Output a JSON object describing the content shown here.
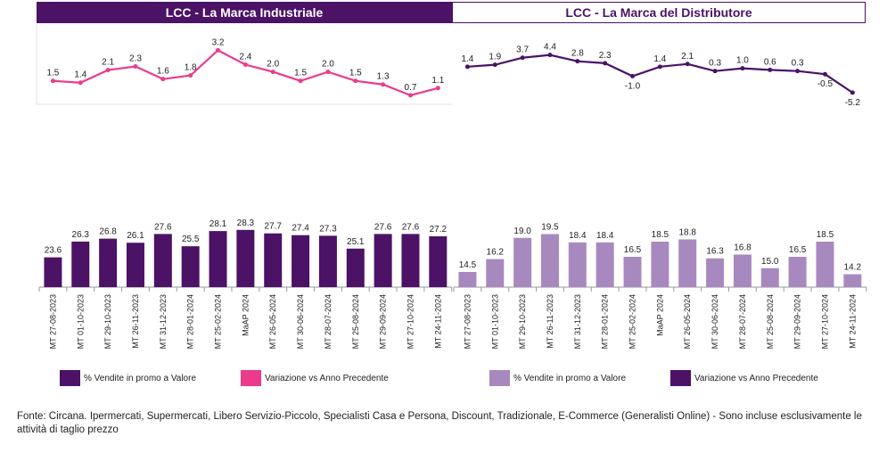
{
  "panels": [
    {
      "title": "LCC - La Marca Industriale",
      "title_bg": "#4b1266",
      "title_color": "#ffffff"
    },
    {
      "title": "LCC - La Marca del Distributore",
      "title_bg": "#ffffff",
      "title_color": "#4b1266"
    }
  ],
  "legend": {
    "left": [
      {
        "label": "% Vendite in promo a Valore",
        "color": "#4b1266"
      },
      {
        "label": "Variazione vs Anno Precedente",
        "color": "#ec3a8c"
      }
    ],
    "right": [
      {
        "label": "% Vendite in promo a Valore",
        "color": "#a889bf"
      },
      {
        "label": "Variazione vs Anno Precedente",
        "color": "#4b1266"
      }
    ]
  },
  "footnote": "Fonte: Circana. Ipermercati, Supermercati, Libero Servizio-Piccolo, Specialisti Casa e Persona, Discount, Tradizionale, E-Commerce (Generalisti Online) - Sono incluse esclusivamente le attività di taglio prezzo",
  "chart_data": [
    {
      "type": "bar",
      "title": "LCC - La Marca Industriale",
      "categories": [
        "MT 27-08-2023",
        "MT 01-10-2023",
        "MT 29-10-2023",
        "MT 26-11-2023",
        "MT 31-12-2023",
        "MT 28-01-2024",
        "MT 25-02-2024",
        "MaAP 2024",
        "MT 26-05-2024",
        "MT 30-06-2024",
        "MT 28-07-2024",
        "MT 25-08-2024",
        "MT 29-09-2024",
        "MT 27-10-2024",
        "MT 24-11-2024"
      ],
      "series": [
        {
          "name": "% Vendite in promo a Valore",
          "type": "bar",
          "color": "#4b1266",
          "values": [
            23.6,
            26.3,
            26.8,
            26.1,
            27.6,
            25.5,
            28.1,
            28.3,
            27.7,
            27.4,
            27.3,
            25.1,
            27.6,
            27.6,
            27.2
          ]
        },
        {
          "name": "Variazione vs Anno Precedente",
          "type": "line",
          "color": "#ec3a8c",
          "values": [
            1.5,
            1.4,
            2.1,
            2.3,
            1.6,
            1.8,
            3.2,
            2.4,
            2.0,
            1.5,
            2.0,
            1.5,
            1.3,
            0.7,
            1.1
          ]
        }
      ]
    },
    {
      "type": "bar",
      "title": "LCC - La Marca del Distributore",
      "categories": [
        "MT 27-08-2023",
        "MT 01-10-2023",
        "MT 29-10-2023",
        "MT 26-11-2023",
        "MT 31-12-2023",
        "MT 28-01-2024",
        "MT 25-02-2024",
        "MaAP 2024",
        "MT 26-05-2024",
        "MT 30-06-2024",
        "MT 28-07-2024",
        "MT 25-08-2024",
        "MT 29-09-2024",
        "MT 27-10-2024",
        "MT 24-11-2024"
      ],
      "series": [
        {
          "name": "% Vendite in promo a Valore",
          "type": "bar",
          "color": "#a889bf",
          "values": [
            14.5,
            16.2,
            19.0,
            19.5,
            18.4,
            18.4,
            16.5,
            18.5,
            18.8,
            16.3,
            16.8,
            15.0,
            16.5,
            18.5,
            14.2
          ]
        },
        {
          "name": "Variazione vs Anno Precedente",
          "type": "line",
          "color": "#4b1266",
          "values": [
            1.4,
            1.9,
            3.7,
            4.4,
            2.8,
            2.3,
            -1.0,
            1.4,
            2.1,
            0.3,
            1.0,
            0.6,
            0.3,
            -0.5,
            -5.2
          ]
        }
      ]
    }
  ]
}
